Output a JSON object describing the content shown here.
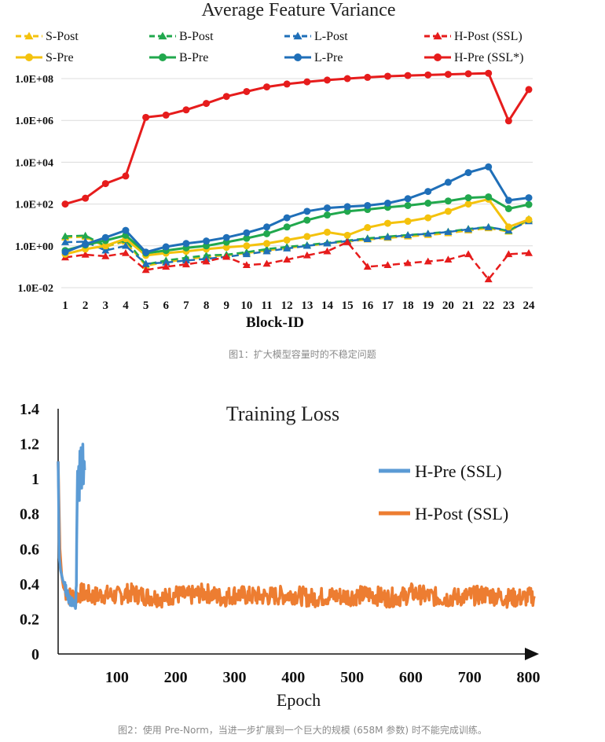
{
  "colors": {
    "S": "#f4c20d",
    "B": "#21a84d",
    "L": "#1f6fb8",
    "H": "#e61c1c",
    "loss_pre": "#5b9bd5",
    "loss_post": "#ed7d31"
  },
  "chart_data": [
    {
      "type": "line",
      "title": "Average Feature Variance",
      "xlabel": "Block-ID",
      "ylabel": "",
      "yscale": "log",
      "ylim": [
        0.01,
        100000000
      ],
      "yticks": [
        "1.0E-02",
        "1.0E+00",
        "1.0E+02",
        "1.0E+04",
        "1.0E+06",
        "1.0E+08"
      ],
      "x": [
        1,
        2,
        3,
        4,
        5,
        6,
        7,
        8,
        9,
        10,
        11,
        12,
        13,
        14,
        15,
        16,
        17,
        18,
        19,
        20,
        21,
        22,
        23,
        24
      ],
      "legend_position": "top",
      "series": [
        {
          "name": "S-Post",
          "key": "S",
          "style": "dashed",
          "marker": "triangle",
          "values": [
            2.5,
            2.7,
            0.9,
            1.6,
            0.11,
            0.17,
            0.22,
            0.3,
            0.35,
            0.45,
            0.6,
            0.8,
            1.0,
            1.3,
            1.6,
            2.0,
            2.4,
            2.8,
            3.3,
            4.0,
            5.5,
            7.0,
            4.8,
            17
          ]
        },
        {
          "name": "B-Post",
          "key": "B",
          "style": "dashed",
          "marker": "triangle",
          "values": [
            2.9,
            3.1,
            1.0,
            1.9,
            0.13,
            0.2,
            0.27,
            0.35,
            0.38,
            0.5,
            0.7,
            0.9,
            1.1,
            1.4,
            1.8,
            2.3,
            2.8,
            3.3,
            3.9,
            4.8,
            6.5,
            8.0,
            5.2,
            19
          ]
        },
        {
          "name": "L-Post",
          "key": "L",
          "style": "dashed",
          "marker": "triangle",
          "values": [
            1.5,
            1.6,
            0.6,
            1.0,
            0.14,
            0.16,
            0.2,
            0.24,
            0.3,
            0.4,
            0.55,
            0.75,
            1.0,
            1.3,
            1.7,
            2.1,
            2.6,
            3.2,
            3.8,
            4.6,
            6.2,
            7.8,
            5.5,
            15
          ]
        },
        {
          "name": "H-Post (SSL)",
          "key": "H",
          "style": "dashed",
          "marker": "triangle",
          "values": [
            0.28,
            0.38,
            0.32,
            0.45,
            0.07,
            0.1,
            0.13,
            0.18,
            0.3,
            0.12,
            0.14,
            0.22,
            0.35,
            0.55,
            1.5,
            0.1,
            0.12,
            0.15,
            0.18,
            0.22,
            0.4,
            0.025,
            0.4,
            0.45
          ]
        },
        {
          "name": "S-Pre",
          "key": "S",
          "style": "solid",
          "marker": "circle",
          "values": [
            0.4,
            0.7,
            1.0,
            2.2,
            0.35,
            0.45,
            0.55,
            0.7,
            0.85,
            1.0,
            1.3,
            1.9,
            2.8,
            4.5,
            3.2,
            7.5,
            12,
            15,
            22,
            45,
            100,
            170,
            8,
            18
          ]
        },
        {
          "name": "B-Pre",
          "key": "B",
          "style": "solid",
          "marker": "circle",
          "values": [
            0.6,
            1.1,
            1.8,
            3.2,
            0.45,
            0.6,
            0.8,
            1.0,
            1.5,
            2.3,
            3.8,
            8,
            17,
            30,
            45,
            55,
            70,
            85,
            110,
            140,
            200,
            220,
            60,
            95
          ]
        },
        {
          "name": "L-Pre",
          "key": "L",
          "style": "solid",
          "marker": "circle",
          "values": [
            0.5,
            1.2,
            2.5,
            5.5,
            0.5,
            0.9,
            1.3,
            1.7,
            2.5,
            4.2,
            8,
            22,
            45,
            65,
            75,
            85,
            110,
            180,
            400,
            1100,
            3200,
            6000,
            150,
            200
          ]
        },
        {
          "name": "H-Pre (SSL*)",
          "key": "H",
          "style": "solid",
          "marker": "circle",
          "values": [
            100,
            190,
            950,
            2200,
            1400000,
            1800000,
            3200000,
            6500000,
            14000000,
            24000000,
            40000000,
            55000000,
            70000000,
            85000000,
            100000000,
            115000000,
            130000000,
            140000000,
            150000000,
            160000000,
            170000000,
            180000000,
            950000,
            30000000
          ]
        }
      ]
    },
    {
      "type": "line",
      "title": "Training Loss",
      "xlabel": "Epoch",
      "ylabel": "",
      "xlim": [
        0,
        810
      ],
      "ylim": [
        0,
        1.4
      ],
      "xticks": [
        "100",
        "200",
        "300",
        "400",
        "500",
        "600",
        "700",
        "800"
      ],
      "yticks": [
        "0",
        "0.2",
        "0.4",
        "0.6",
        "0.8",
        "1",
        "1.2",
        "1.4"
      ],
      "legend_position": "right",
      "series": [
        {
          "name": "H-Pre (SSL)",
          "key": "loss_pre",
          "note": "diverges around epoch 30-45, training stops near epoch 45",
          "x": [
            0,
            2,
            4,
            6,
            8,
            10,
            12,
            14,
            16,
            18,
            20,
            22,
            24,
            26,
            28,
            30,
            31,
            32,
            33,
            34,
            35,
            36,
            37,
            38,
            39,
            40,
            41,
            42,
            43,
            44,
            45
          ],
          "values": [
            1.1,
            0.55,
            0.48,
            0.45,
            0.42,
            0.4,
            0.38,
            0.36,
            0.34,
            0.32,
            0.3,
            0.31,
            0.29,
            0.28,
            0.3,
            0.27,
            0.42,
            0.8,
            1.05,
            0.95,
            1.1,
            0.9,
            1.15,
            1.0,
            1.2,
            0.95,
            1.08,
            1.18,
            0.98,
            1.1,
            1.05
          ]
        },
        {
          "name": "H-Post (SSL)",
          "key": "loss_post",
          "note": "noisy plateau around 0.33 through epoch 810",
          "x": [
            0,
            3,
            6,
            9,
            12,
            16,
            20,
            30,
            40,
            60,
            80,
            100,
            120,
            150,
            180,
            200,
            220,
            250,
            280,
            300,
            330,
            360,
            400,
            430,
            460,
            500,
            530,
            560,
            590,
            600,
            630,
            660,
            700,
            730,
            760,
            790,
            810
          ],
          "values": [
            1.1,
            0.6,
            0.45,
            0.38,
            0.36,
            0.34,
            0.33,
            0.33,
            0.35,
            0.33,
            0.34,
            0.33,
            0.35,
            0.33,
            0.32,
            0.34,
            0.33,
            0.35,
            0.32,
            0.34,
            0.33,
            0.33,
            0.34,
            0.32,
            0.33,
            0.33,
            0.34,
            0.32,
            0.33,
            0.35,
            0.33,
            0.32,
            0.33,
            0.34,
            0.32,
            0.32,
            0.33
          ]
        }
      ]
    }
  ],
  "captions": {
    "fig1": "图1：扩大模型容量时的不稳定问题",
    "fig2": "图2：使用 Pre-Norm，当进一步扩展到一个巨大的规模 (658M 参数) 时不能完成训练。"
  }
}
